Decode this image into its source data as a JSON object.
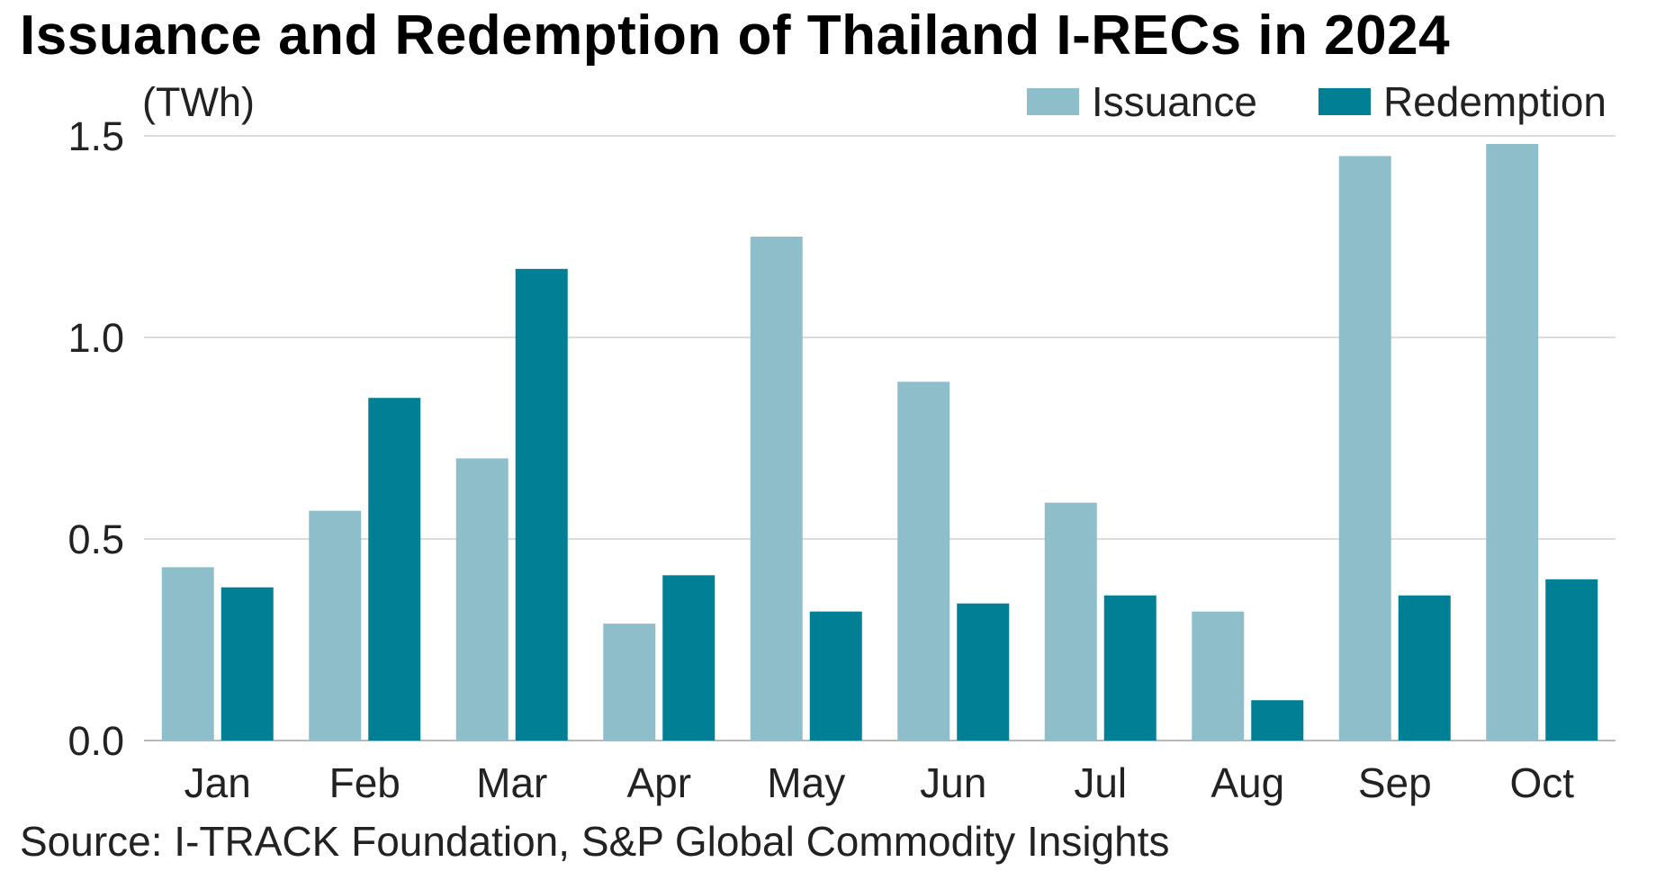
{
  "title": "Issuance and Redemption of Thailand I-RECs in 2024",
  "unit_label": "(TWh)",
  "source": "Source: I-TRACK Foundation, S&P Global Commodity Insights",
  "colors": {
    "issuance": "#8fbecb",
    "redemption": "#007f95",
    "grid": "#d0d0d0",
    "axis": "#b8b8b8"
  },
  "chart_data": {
    "type": "bar",
    "title": "Issuance and Redemption of Thailand I-RECs in 2024",
    "xlabel": "",
    "ylabel": "(TWh)",
    "ylim": [
      0,
      1.5
    ],
    "yticks": [
      0.0,
      0.5,
      1.0,
      1.5
    ],
    "ytick_labels": [
      "0.0",
      "0.5",
      "1.0",
      "1.5"
    ],
    "categories": [
      "Jan",
      "Feb",
      "Mar",
      "Apr",
      "May",
      "Jun",
      "Jul",
      "Aug",
      "Sep",
      "Oct"
    ],
    "series": [
      {
        "name": "Issuance",
        "values": [
          0.43,
          0.57,
          0.7,
          0.29,
          1.25,
          0.89,
          0.59,
          0.32,
          1.45,
          1.48
        ]
      },
      {
        "name": "Redemption",
        "values": [
          0.38,
          0.85,
          1.17,
          0.41,
          0.32,
          0.34,
          0.36,
          0.1,
          0.36,
          0.4
        ]
      }
    ],
    "legend": "top-right",
    "grid": true
  }
}
